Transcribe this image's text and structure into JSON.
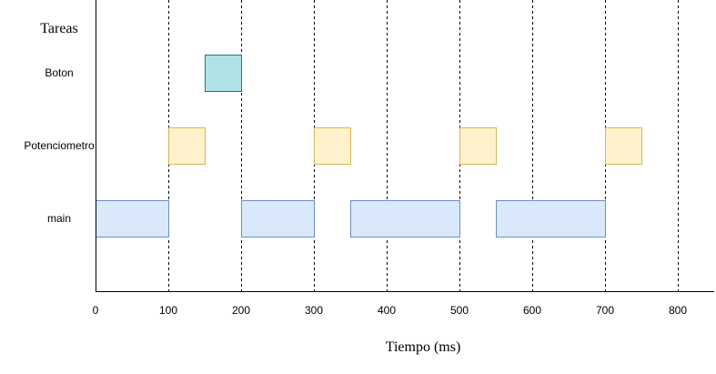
{
  "chart_data": {
    "type": "gantt",
    "title": "Tareas",
    "xlabel": "Tiempo (ms)",
    "xlim": [
      0,
      850
    ],
    "ticks": [
      0,
      100,
      200,
      300,
      400,
      500,
      600,
      700,
      800
    ],
    "tick_labels": [
      "0",
      "100",
      "200",
      "300",
      "400",
      "500",
      "600",
      "700",
      "800"
    ],
    "gridlines": [
      100,
      200,
      300,
      400,
      500,
      600,
      700,
      800
    ],
    "grid_style": "dashed vertical",
    "tasks": [
      {
        "name": "Boton",
        "fill": "#b0e3e6",
        "stroke": "#0e8088",
        "segments": [
          [
            150,
            200
          ]
        ]
      },
      {
        "name": "Potenciometro",
        "fill": "#fff2cc",
        "stroke": "#d6b656",
        "segments": [
          [
            100,
            150
          ],
          [
            300,
            350
          ],
          [
            500,
            550
          ],
          [
            700,
            750
          ]
        ]
      },
      {
        "name": "main",
        "fill": "#dae8fc",
        "stroke": "#6c8ebf",
        "segments": [
          [
            0,
            100
          ],
          [
            200,
            300
          ],
          [
            350,
            500
          ],
          [
            550,
            700
          ]
        ]
      }
    ]
  }
}
